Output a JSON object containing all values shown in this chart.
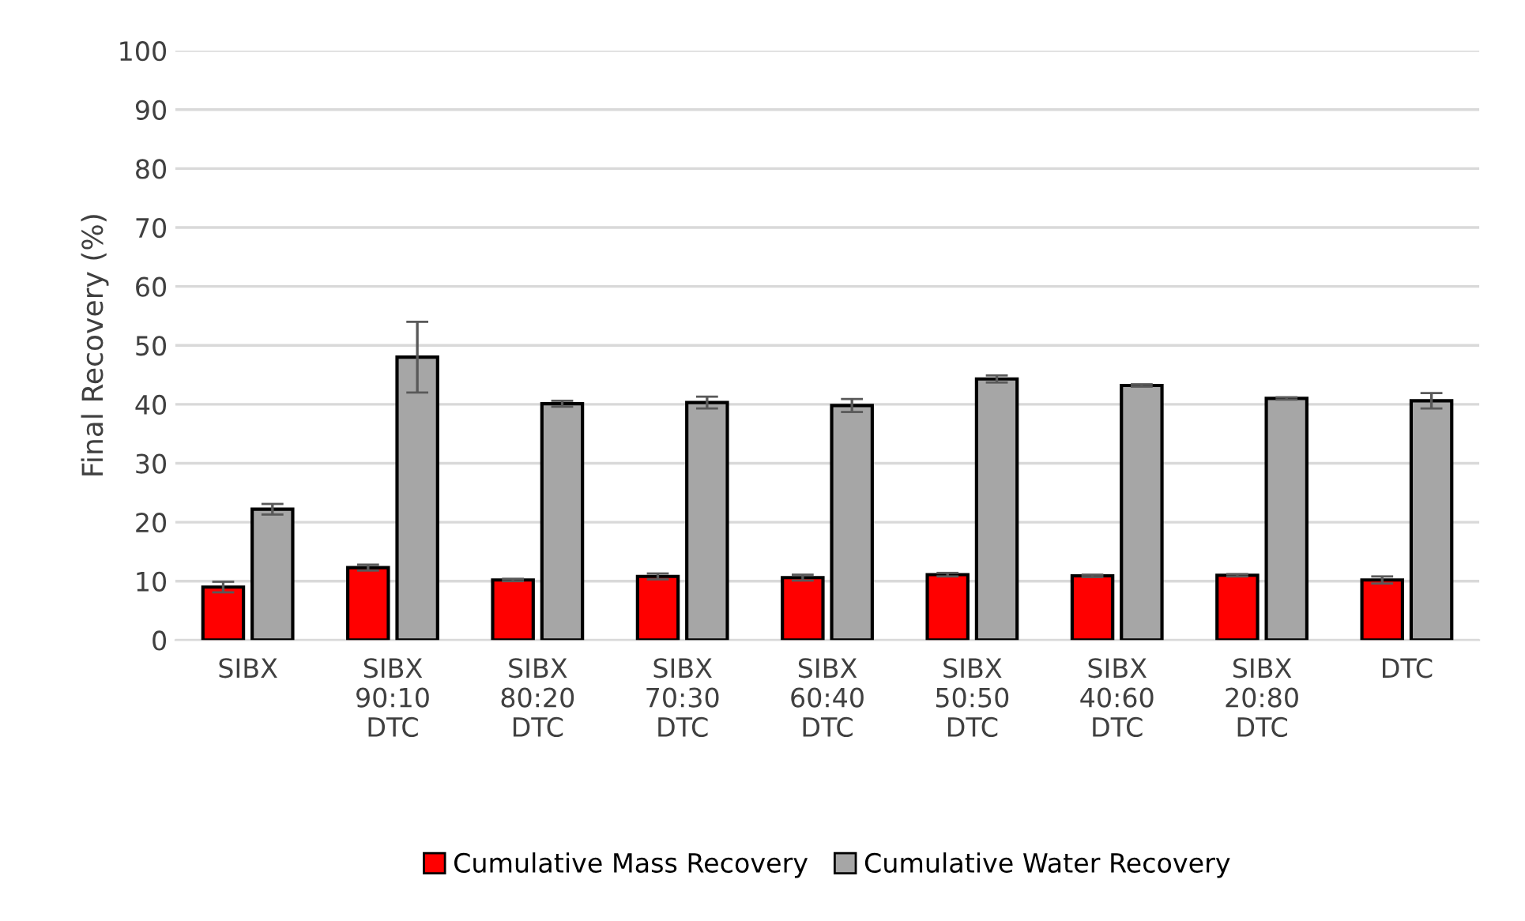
{
  "chart_data": {
    "type": "bar",
    "ylabel": "Final Recovery (%)",
    "categories": [
      "SIBX",
      "SIBX\n90:10\nDTC",
      "SIBX\n80:20\nDTC",
      "SIBX\n70:30\nDTC",
      "SIBX\n60:40\nDTC",
      "SIBX\n50:50\nDTC",
      "SIBX\n40:60\nDTC",
      "SIBX\n20:80\nDTC",
      "DTC"
    ],
    "series": [
      {
        "name": "Cumulative Mass Recovery",
        "color": "#ff0000",
        "values": [
          9,
          12.3,
          10.2,
          10.8,
          10.6,
          11.1,
          10.9,
          11.0,
          10.2
        ],
        "errors": [
          0.9,
          0.5,
          0.2,
          0.5,
          0.5,
          0.3,
          0.2,
          0.2,
          0.6
        ]
      },
      {
        "name": "Cumulative Water Recovery",
        "color": "#a6a6a6",
        "values": [
          22.2,
          48,
          40.1,
          40.3,
          39.8,
          44.3,
          43.2,
          41,
          40.6
        ],
        "errors": [
          0.9,
          6,
          0.5,
          1,
          1.1,
          0.6,
          0.2,
          0.2,
          1.3
        ]
      }
    ],
    "ylim": [
      0,
      100
    ],
    "yticks": [
      0,
      10,
      20,
      30,
      40,
      50,
      60,
      70,
      80,
      90,
      100
    ],
    "grid": "y",
    "legend": "bottom"
  }
}
